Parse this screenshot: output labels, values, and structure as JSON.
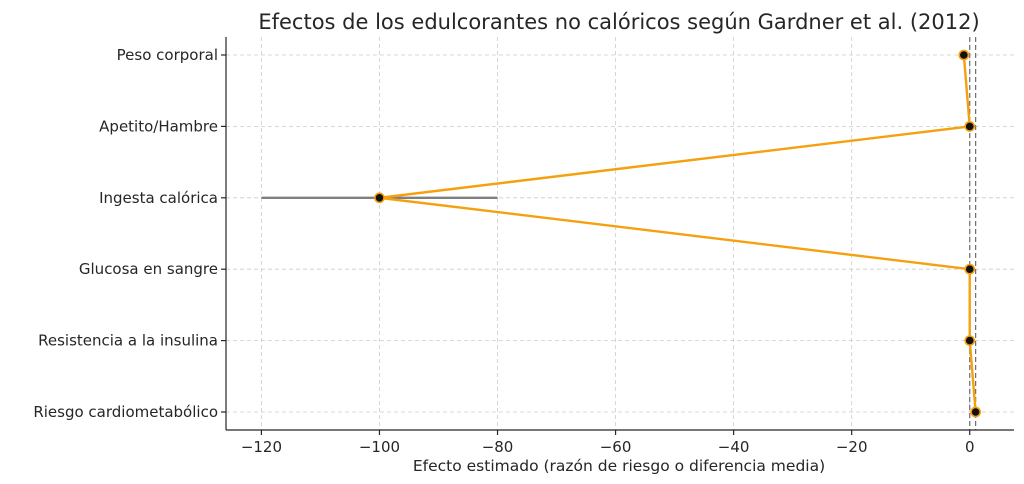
{
  "chart_data": {
    "type": "line",
    "title": "Efectos de los edulcorantes no calóricos según Gardner et al. (2012)",
    "xlabel": "Efecto estimado (razón de riesgo o diferencia media)",
    "ylabel": "",
    "xlim": [
      -126,
      7.5
    ],
    "xticks": [
      -120,
      -100,
      -80,
      -60,
      -40,
      -20,
      0
    ],
    "xtick_labels": [
      "−120",
      "−100",
      "−80",
      "−60",
      "−40",
      "−20",
      "0"
    ],
    "categories": [
      "Peso corporal",
      "Apetito/Hambre",
      "Ingesta calórica",
      "Glucosa en sangre",
      "Resistencia a la insulina",
      "Riesgo cardiometabólico"
    ],
    "values": [
      -1.0,
      0.0,
      -100.0,
      0.0,
      0.0,
      1.0
    ],
    "error_intervals": [
      null,
      null,
      [
        -120,
        -80
      ],
      null,
      null,
      null
    ],
    "reference_lines": [
      0,
      1
    ],
    "grid": true,
    "colors": {
      "line": "#f5a00f",
      "marker_fill": "#111111",
      "marker_edge": "#f5a00f",
      "error_bar": "#7f7f7f",
      "reference": "#6e6e6e"
    }
  }
}
